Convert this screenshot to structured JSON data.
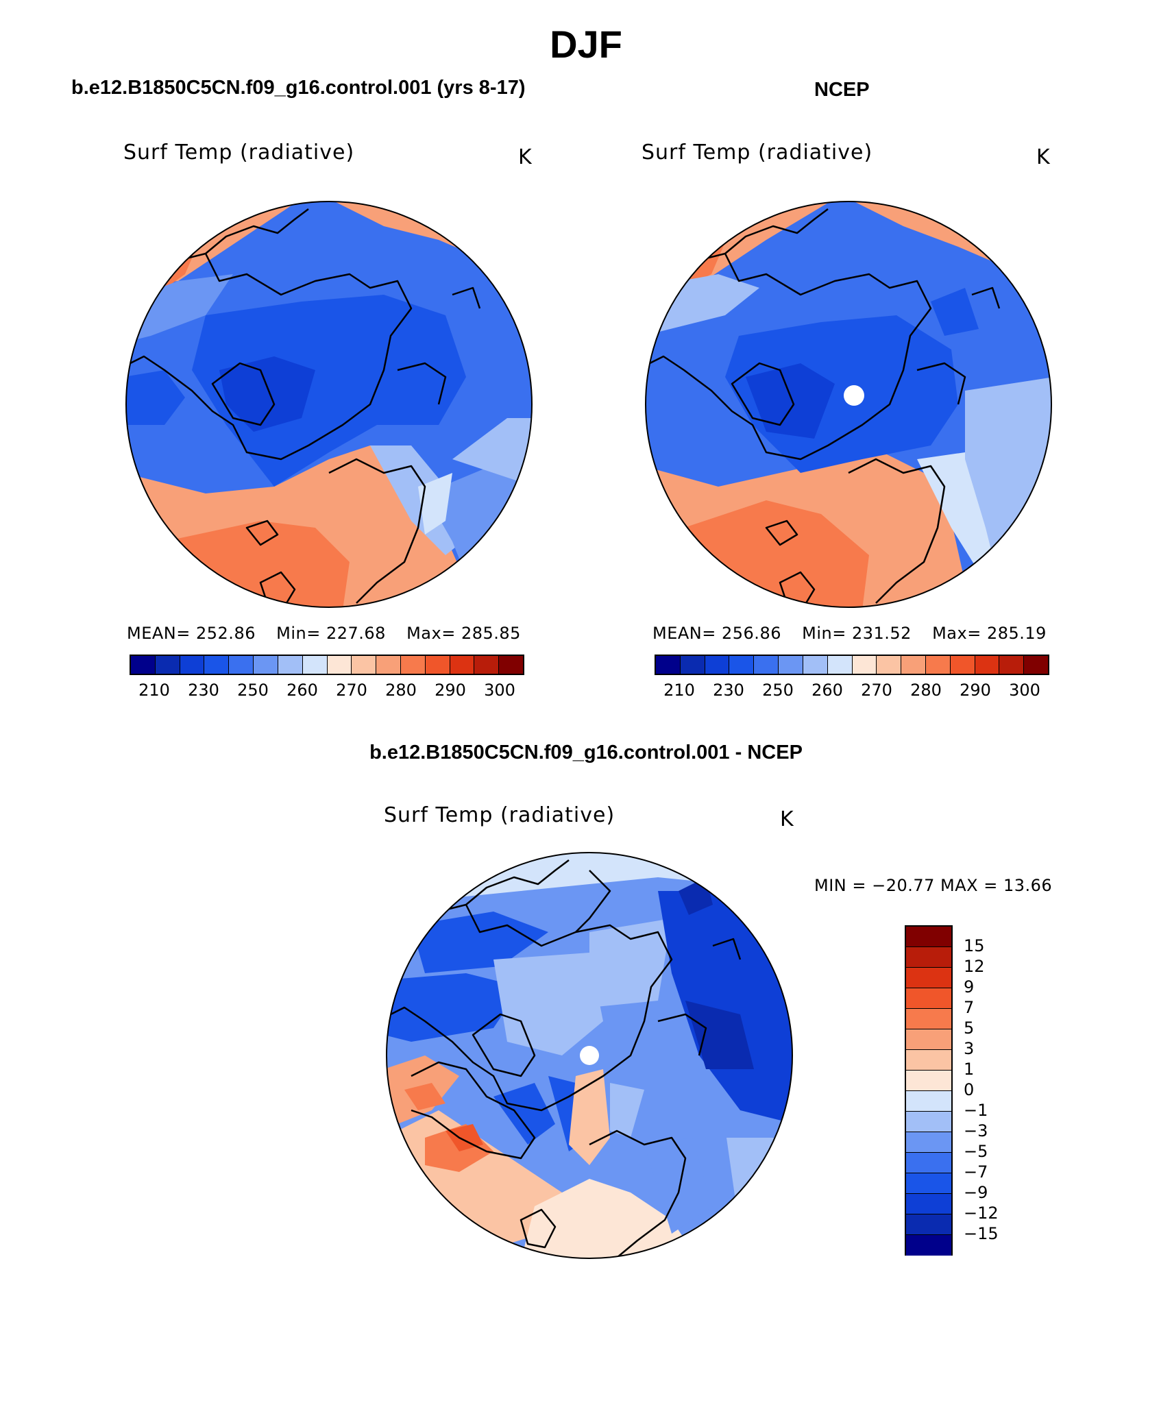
{
  "title": "DJF",
  "panels": {
    "model": {
      "title": "b.e12.B1850C5CN.f09_g16.control.001 (yrs 8-17)",
      "variable": "Surf Temp (radiative)",
      "units": "K",
      "mean_label": "MEAN=",
      "mean": "252.86",
      "min_label": "Min=",
      "min": "227.68",
      "max_label": "Max=",
      "max": "285.85"
    },
    "obs": {
      "title": "NCEP",
      "variable": "Surf Temp (radiative)",
      "units": "K",
      "mean_label": "MEAN=",
      "mean": "256.86",
      "min_label": "Min=",
      "min": "231.52",
      "max_label": "Max=",
      "max": "285.19"
    },
    "diff": {
      "title": "b.e12.B1850C5CN.f09_g16.control.001 - NCEP",
      "variable": "Surf Temp (radiative)",
      "units": "K",
      "minmax_text": "MIN = −20.77 MAX =   13.66"
    }
  },
  "colorbar_abs": {
    "tick_labels": [
      "210",
      "230",
      "250",
      "260",
      "270",
      "280",
      "290",
      "300"
    ],
    "colors": [
      "#00008b",
      "#0a2bb0",
      "#0e3fd6",
      "#1a55e8",
      "#3a70ef",
      "#6b96f3",
      "#a2bff7",
      "#d3e4fb",
      "#fde6d6",
      "#fbc4a4",
      "#f8a078",
      "#f77a4c",
      "#f0562a",
      "#dc3312",
      "#b81d0a",
      "#800000"
    ]
  },
  "colorbar_diff": {
    "tick_labels": [
      "15",
      "12",
      "9",
      "7",
      "5",
      "3",
      "1",
      "0",
      "−1",
      "−3",
      "−5",
      "−7",
      "−9",
      "−12",
      "−15"
    ],
    "colors": [
      "#800000",
      "#b81d0a",
      "#dc3312",
      "#f0562a",
      "#f77a4c",
      "#f8a078",
      "#fbc4a4",
      "#fde6d6",
      "#d3e4fb",
      "#a2bff7",
      "#6b96f3",
      "#3a70ef",
      "#1a55e8",
      "#0e3fd6",
      "#0a2bb0",
      "#00008b"
    ]
  }
}
